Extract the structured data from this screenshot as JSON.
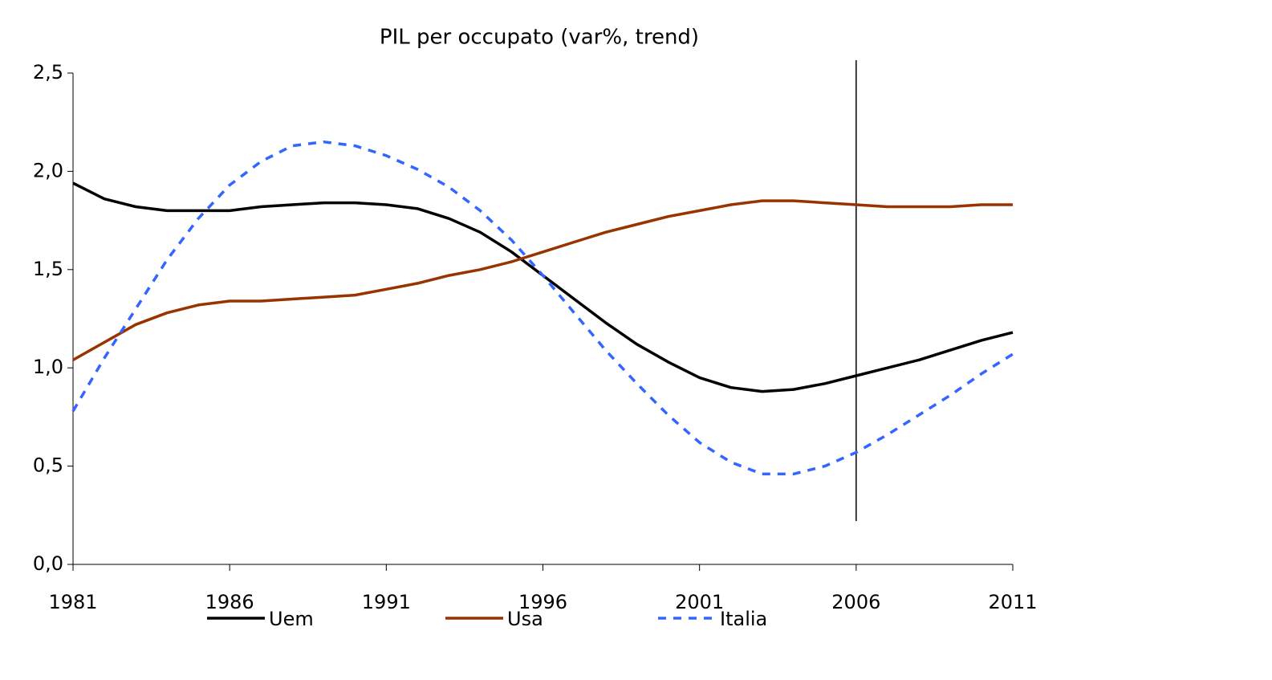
{
  "chart_data": {
    "type": "line",
    "title": "PIL per occupato (var%, trend)",
    "x": [
      1981,
      1982,
      1983,
      1984,
      1985,
      1986,
      1987,
      1988,
      1989,
      1990,
      1991,
      1992,
      1993,
      1994,
      1995,
      1996,
      1997,
      1998,
      1999,
      2000,
      2001,
      2002,
      2003,
      2004,
      2005,
      2006,
      2007,
      2008,
      2009,
      2010,
      2011
    ],
    "series": [
      {
        "name": "Uem",
        "color": "#000000",
        "dashed": false,
        "values": [
          1.94,
          1.86,
          1.82,
          1.8,
          1.8,
          1.8,
          1.82,
          1.83,
          1.84,
          1.84,
          1.83,
          1.81,
          1.76,
          1.69,
          1.59,
          1.47,
          1.35,
          1.23,
          1.12,
          1.03,
          0.95,
          0.9,
          0.88,
          0.89,
          0.92,
          0.96,
          1.0,
          1.04,
          1.09,
          1.14,
          1.18
        ]
      },
      {
        "name": "Usa",
        "color": "#993300",
        "dashed": false,
        "values": [
          1.04,
          1.13,
          1.22,
          1.28,
          1.32,
          1.34,
          1.34,
          1.35,
          1.36,
          1.37,
          1.4,
          1.43,
          1.47,
          1.5,
          1.54,
          1.59,
          1.64,
          1.69,
          1.73,
          1.77,
          1.8,
          1.83,
          1.85,
          1.85,
          1.84,
          1.83,
          1.82,
          1.82,
          1.82,
          1.83,
          1.83
        ]
      },
      {
        "name": "Italia",
        "color": "#3366ff",
        "dashed": true,
        "values": [
          0.78,
          1.05,
          1.3,
          1.55,
          1.76,
          1.93,
          2.05,
          2.13,
          2.15,
          2.13,
          2.08,
          2.01,
          1.92,
          1.8,
          1.65,
          1.47,
          1.28,
          1.09,
          0.92,
          0.76,
          0.62,
          0.52,
          0.46,
          0.46,
          0.5,
          0.57,
          0.66,
          0.76,
          0.86,
          0.97,
          1.07
        ]
      }
    ],
    "xlim": [
      1981,
      2011
    ],
    "xticks": [
      1981,
      1986,
      1991,
      1996,
      2001,
      2006,
      2011
    ],
    "ylim": [
      0,
      2.5
    ],
    "yticks": [
      {
        "value": 0,
        "label": "0,0"
      },
      {
        "value": 0.5,
        "label": "0,5"
      },
      {
        "value": 1,
        "label": "1,0"
      },
      {
        "value": 1.5,
        "label": "1,5"
      },
      {
        "value": 2,
        "label": "2,0"
      },
      {
        "value": 2.5,
        "label": "2,5"
      }
    ],
    "reference_line": {
      "x": 2006
    },
    "legend": "bottom",
    "grid": false
  }
}
